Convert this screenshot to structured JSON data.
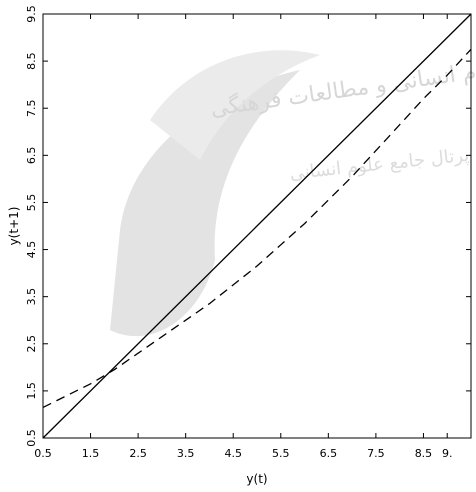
{
  "chart_data": {
    "type": "line",
    "xlabel": "y(t)",
    "ylabel": "y(t+1)",
    "xlim": [
      0.5,
      9.5
    ],
    "ylim": [
      0.5,
      9.5
    ],
    "x_ticks": [
      "0.5",
      "1.5",
      "2.5",
      "3.5",
      "4.5",
      "5.5",
      "6.5",
      "7.5",
      "8.5",
      "9."
    ],
    "y_ticks": [
      "0.5",
      "1.5",
      "2.5",
      "3.5",
      "4.5",
      "5.5",
      "6.5",
      "7.5",
      "8.5",
      "9.5"
    ],
    "grid": false,
    "series": [
      {
        "style": "solid",
        "color": "#000000",
        "x": [
          0.5,
          9.5
        ],
        "y": [
          0.5,
          9.5
        ]
      },
      {
        "style": "dashed",
        "color": "#000000",
        "x": [
          0.5,
          1.0,
          1.5,
          2.0,
          2.5,
          3.0,
          3.5,
          4.0,
          4.5,
          5.0,
          5.5,
          6.0,
          6.5,
          7.0,
          7.5,
          8.0,
          8.5,
          9.0,
          9.5
        ],
        "y": [
          1.15,
          1.4,
          1.65,
          1.95,
          2.3,
          2.65,
          3.0,
          3.35,
          3.75,
          4.15,
          4.6,
          5.05,
          5.55,
          6.05,
          6.6,
          7.15,
          7.7,
          8.2,
          8.75
        ]
      }
    ]
  },
  "watermark": {
    "line1": "علوم انسانی و مطالعات فرهنگی",
    "line2": "پرتال جامع علوم انسانی"
  },
  "colors": {
    "watermark": "#d9d9d9",
    "axis": "#000000"
  }
}
